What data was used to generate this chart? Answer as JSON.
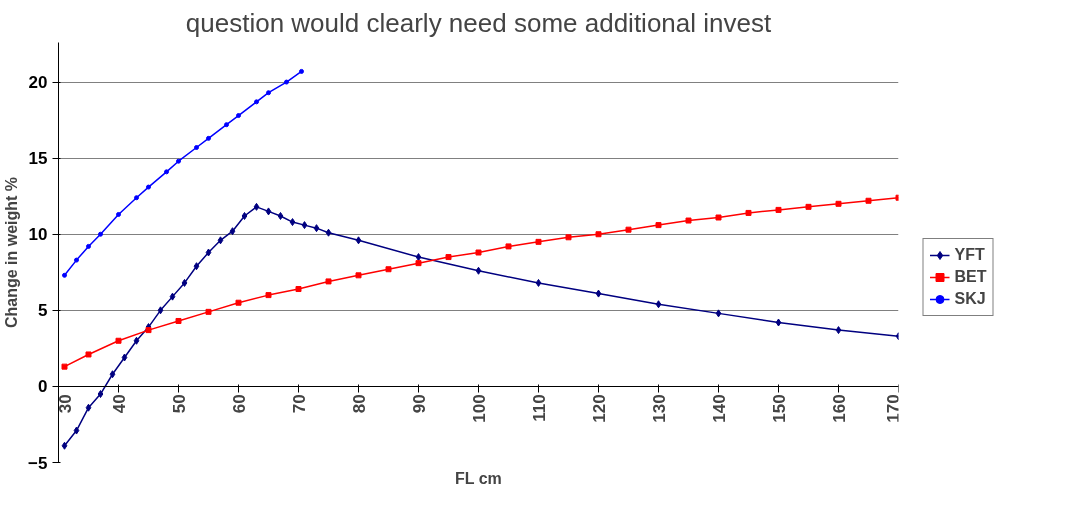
{
  "chart_data": {
    "type": "line",
    "annotations": [
      "question would clearly need some additional invest"
    ],
    "xlabel": "FL cm",
    "ylabel": "Change in weight %",
    "xlim": [
      30,
      170
    ],
    "xticks": [
      30,
      40,
      50,
      60,
      70,
      80,
      90,
      100,
      110,
      120,
      130,
      140,
      150,
      160,
      170
    ],
    "ylim": [
      -5,
      22.6
    ],
    "yticks": [
      -5,
      0,
      5,
      10,
      15,
      20
    ],
    "grid": "y",
    "legend": "right",
    "series": [
      {
        "name": "YFT",
        "color": "#000080",
        "marker": "diamond",
        "x": [
          31,
          33,
          35,
          37,
          39,
          41,
          43,
          45,
          47,
          49,
          51,
          53,
          55,
          57,
          59,
          61,
          63,
          65,
          67,
          69,
          71,
          73,
          75,
          80,
          90,
          100,
          110,
          120,
          130,
          140,
          150,
          160,
          170
        ],
        "values": [
          -3.9,
          -2.9,
          -1.4,
          -0.5,
          0.8,
          1.9,
          3.0,
          3.9,
          5.0,
          5.9,
          6.8,
          7.9,
          8.8,
          9.6,
          10.2,
          11.2,
          11.8,
          11.5,
          11.2,
          10.8,
          10.6,
          10.4,
          10.1,
          9.6,
          8.5,
          7.6,
          6.8,
          6.1,
          5.4,
          4.8,
          4.2,
          3.7,
          3.3
        ]
      },
      {
        "name": "BET",
        "color": "#ff0000",
        "marker": "square",
        "x": [
          31,
          35,
          40,
          45,
          50,
          55,
          60,
          65,
          70,
          75,
          80,
          85,
          90,
          95,
          100,
          105,
          110,
          115,
          120,
          125,
          130,
          135,
          140,
          145,
          150,
          155,
          160,
          165,
          170
        ],
        "values": [
          1.3,
          2.1,
          3.0,
          3.7,
          4.3,
          4.9,
          5.5,
          6.0,
          6.4,
          6.9,
          7.3,
          7.7,
          8.1,
          8.5,
          8.8,
          9.2,
          9.5,
          9.8,
          10.0,
          10.3,
          10.6,
          10.9,
          11.1,
          11.4,
          11.6,
          11.8,
          12.0,
          12.2,
          12.4
        ]
      },
      {
        "name": "SKJ",
        "color": "#0000ff",
        "marker": "circle",
        "x": [
          31,
          33,
          35,
          37,
          40,
          43,
          45,
          48,
          50,
          53,
          55,
          58,
          60,
          63,
          65,
          68,
          70.5
        ],
        "values": [
          7.3,
          8.3,
          9.2,
          10.0,
          11.3,
          12.4,
          13.1,
          14.1,
          14.8,
          15.7,
          16.3,
          17.2,
          17.8,
          18.7,
          19.3,
          20.0,
          20.7
        ]
      }
    ]
  }
}
